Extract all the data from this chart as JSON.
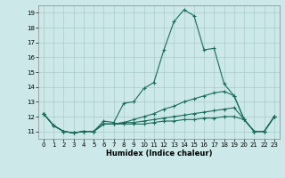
{
  "title": "",
  "xlabel": "Humidex (Indice chaleur)",
  "ylabel": "",
  "background_color": "#cce8e8",
  "grid_color": "#aacccc",
  "line_color": "#1a6b5a",
  "xlim": [
    -0.5,
    23.5
  ],
  "ylim": [
    10.5,
    19.5
  ],
  "yticks": [
    11,
    12,
    13,
    14,
    15,
    16,
    17,
    18,
    19
  ],
  "xticks": [
    0,
    1,
    2,
    3,
    4,
    5,
    6,
    7,
    8,
    9,
    10,
    11,
    12,
    13,
    14,
    15,
    16,
    17,
    18,
    19,
    20,
    21,
    22,
    23
  ],
  "xtick_labels": [
    "0",
    "1",
    "2",
    "3",
    "4",
    "5",
    "6",
    "7",
    "8",
    "9",
    "10",
    "11",
    "12",
    "13",
    "14",
    "15",
    "16",
    "17",
    "18",
    "19",
    "20",
    "21",
    "22",
    "23"
  ],
  "series": [
    [
      12.2,
      11.4,
      11.0,
      10.9,
      11.0,
      11.0,
      11.7,
      11.6,
      12.9,
      13.0,
      13.9,
      14.3,
      16.5,
      18.4,
      19.2,
      18.8,
      16.5,
      16.6,
      14.2,
      13.4,
      11.8,
      11.0,
      11.0,
      12.0
    ],
    [
      12.2,
      11.4,
      11.0,
      10.9,
      11.0,
      11.0,
      11.5,
      11.5,
      11.6,
      11.8,
      12.0,
      12.2,
      12.5,
      12.7,
      13.0,
      13.2,
      13.4,
      13.6,
      13.7,
      13.4,
      11.8,
      11.0,
      11.0,
      12.0
    ],
    [
      12.2,
      11.4,
      11.0,
      10.9,
      11.0,
      11.0,
      11.5,
      11.5,
      11.6,
      11.6,
      11.7,
      11.8,
      11.9,
      12.0,
      12.1,
      12.2,
      12.3,
      12.4,
      12.5,
      12.6,
      11.8,
      11.0,
      11.0,
      12.0
    ],
    [
      12.2,
      11.4,
      11.0,
      10.9,
      11.0,
      11.0,
      11.5,
      11.5,
      11.5,
      11.5,
      11.5,
      11.6,
      11.7,
      11.7,
      11.8,
      11.8,
      11.9,
      11.9,
      12.0,
      12.0,
      11.8,
      11.0,
      11.0,
      12.0
    ]
  ]
}
